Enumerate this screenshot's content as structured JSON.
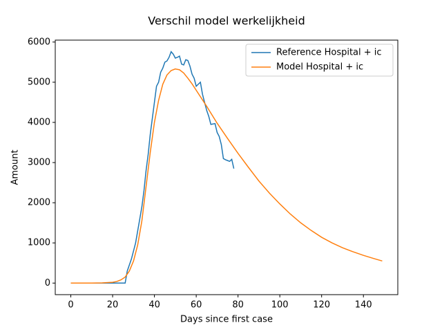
{
  "chart_data": {
    "type": "line",
    "title": "Verschil model werkelijkheid",
    "x_label": "Days since first case",
    "y_label": "Amount",
    "xlim": [
      -7.45,
      156.45
    ],
    "xticks": [
      0,
      20,
      40,
      60,
      80,
      100,
      120,
      140
    ],
    "ylim": [
      -288,
      6048
    ],
    "yticks": [
      0,
      1000,
      2000,
      3000,
      4000,
      5000,
      6000
    ],
    "legend": "upper right",
    "series": [
      {
        "name": "Reference Hospital + ic",
        "color": "#1f77b4",
        "x": [
          0,
          1,
          2,
          3,
          4,
          5,
          6,
          7,
          8,
          9,
          10,
          11,
          12,
          13,
          14,
          15,
          16,
          17,
          18,
          19,
          20,
          21,
          22,
          23,
          24,
          25,
          26,
          27,
          28,
          29,
          30,
          31,
          32,
          33,
          34,
          35,
          36,
          37,
          38,
          39,
          40,
          41,
          42,
          43,
          44,
          45,
          46,
          47,
          48,
          49,
          50,
          51,
          52,
          53,
          54,
          55,
          56,
          57,
          58,
          59,
          60,
          61,
          62,
          63,
          64,
          65,
          66,
          67,
          68,
          69,
          70,
          71,
          72,
          73,
          74,
          75,
          76,
          77,
          78
        ],
        "values": [
          0,
          0,
          0,
          0,
          0,
          0,
          0,
          0,
          0,
          0,
          0,
          0,
          0,
          0,
          0,
          0,
          0,
          0,
          0,
          0,
          0,
          0,
          0,
          0,
          0,
          0,
          0,
          300,
          450,
          600,
          800,
          1000,
          1300,
          1600,
          1900,
          2300,
          2800,
          3200,
          3700,
          4100,
          4500,
          4900,
          5000,
          5250,
          5350,
          5500,
          5530,
          5620,
          5760,
          5700,
          5600,
          5620,
          5650,
          5450,
          5430,
          5560,
          5540,
          5400,
          5200,
          5100,
          4900,
          4950,
          5000,
          4700,
          4500,
          4300,
          4150,
          3950,
          3960,
          3970,
          3750,
          3650,
          3450,
          3100,
          3070,
          3050,
          3030,
          3080,
          2850
        ]
      },
      {
        "name": "Model Hospital + ic",
        "color": "#ff7f0e",
        "x": [
          0,
          5,
          10,
          15,
          20,
          22,
          24,
          26,
          28,
          30,
          32,
          34,
          36,
          38,
          40,
          42,
          44,
          46,
          48,
          50,
          52,
          54,
          56,
          58,
          60,
          65,
          70,
          75,
          80,
          85,
          90,
          95,
          100,
          105,
          110,
          115,
          120,
          125,
          130,
          135,
          140,
          145,
          149
        ],
        "values": [
          0,
          0,
          0,
          5,
          20,
          40,
          80,
          150,
          300,
          550,
          950,
          1550,
          2400,
          3250,
          4000,
          4550,
          4950,
          5180,
          5290,
          5330,
          5310,
          5230,
          5100,
          4960,
          4800,
          4400,
          3980,
          3600,
          3230,
          2880,
          2540,
          2240,
          1970,
          1720,
          1500,
          1310,
          1140,
          1000,
          880,
          780,
          690,
          610,
          550
        ]
      }
    ]
  }
}
